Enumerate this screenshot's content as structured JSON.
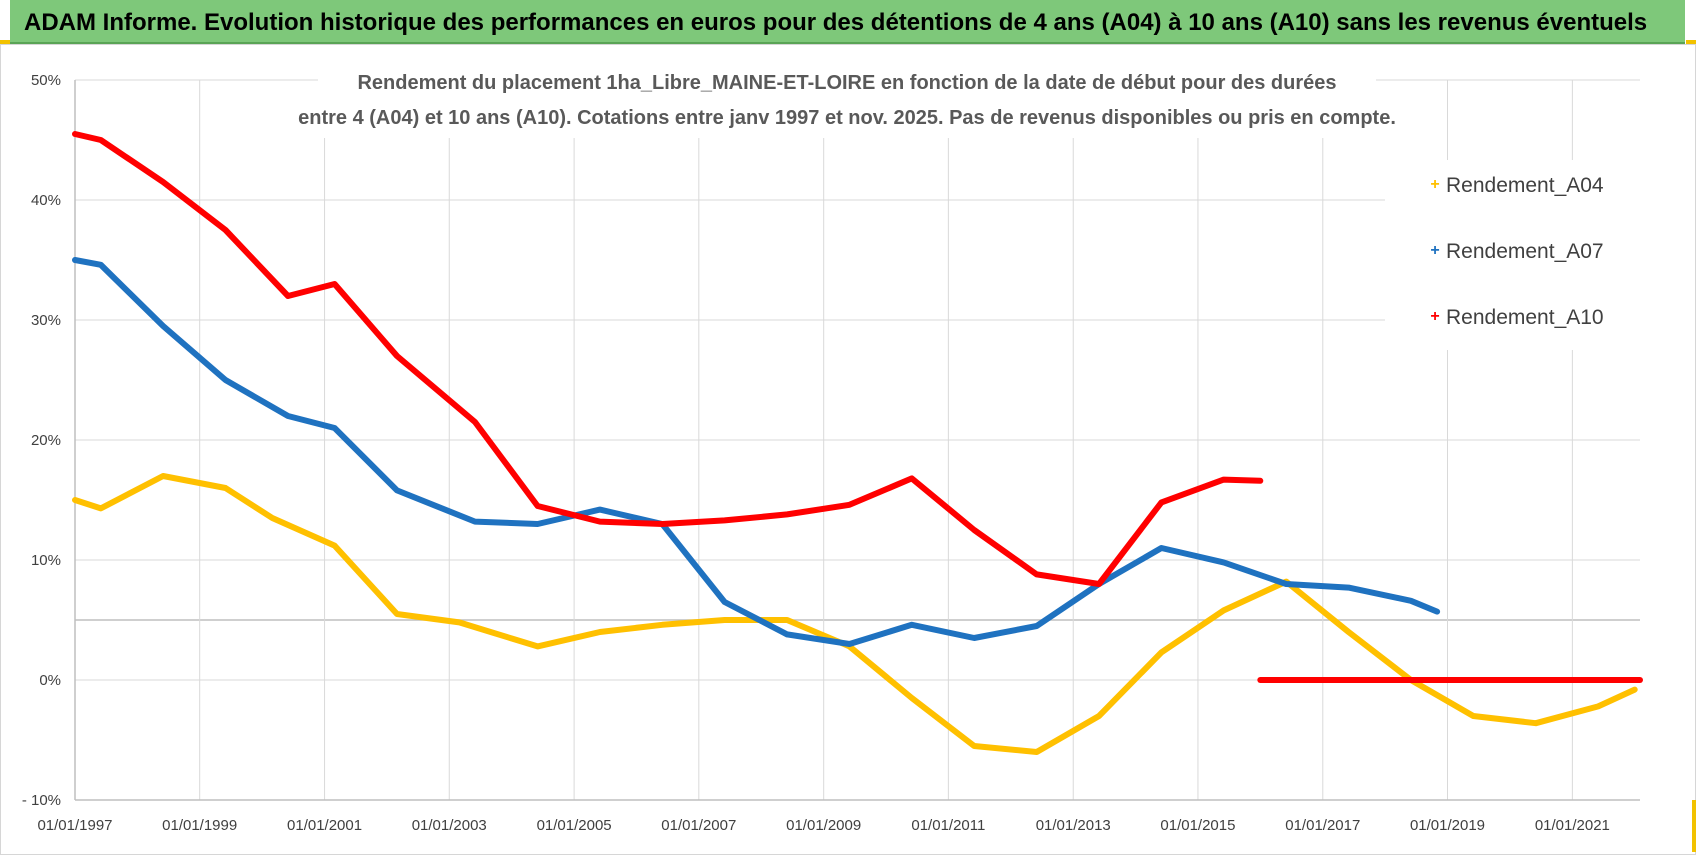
{
  "banner": {
    "title": "ADAM Informe. Evolution historique des performances en euros pour des détentions de 4 ans (A04) à 10 ans (A10) sans les revenus éventuels"
  },
  "colors": {
    "banner_bg": "#7ec87a",
    "A04": "#ffc000",
    "A07": "#1f72c0",
    "A10": "#ff0000",
    "grid": "#d9d9d9",
    "axis": "#bfbfbf",
    "text": "#404040"
  },
  "chart_data": {
    "type": "line",
    "title_line1": "Rendement du placement 1ha_Libre_MAINE-ET-LOIRE en fonction de la date de début pour des durées",
    "title_line2": "entre 4 (A04) et 10 ans (A10). Cotations entre janv 1997 et nov. 2025. Pas de revenus disponibles ou pris en compte.",
    "xlabel": "",
    "ylabel": "",
    "x_range": [
      "1997-01-01",
      "2022-02-01"
    ],
    "ylim": [
      -10,
      50
    ],
    "y_ticks": [
      {
        "value": -10,
        "label": "- 10%"
      },
      {
        "value": 0,
        "label": "0%"
      },
      {
        "value": 10,
        "label": "10%"
      },
      {
        "value": 20,
        "label": "20%"
      },
      {
        "value": 30,
        "label": "30%"
      },
      {
        "value": 40,
        "label": "40%"
      },
      {
        "value": 50,
        "label": "50%"
      }
    ],
    "x_ticks": [
      {
        "date": "1997-01-01",
        "label": "01/01/1997"
      },
      {
        "date": "1999-01-01",
        "label": "01/01/1999"
      },
      {
        "date": "2001-01-01",
        "label": "01/01/2001"
      },
      {
        "date": "2003-01-01",
        "label": "01/01/2003"
      },
      {
        "date": "2005-01-01",
        "label": "01/01/2005"
      },
      {
        "date": "2007-01-01",
        "label": "01/01/2007"
      },
      {
        "date": "2009-01-01",
        "label": "01/01/2009"
      },
      {
        "date": "2011-01-01",
        "label": "01/01/2011"
      },
      {
        "date": "2013-01-01",
        "label": "01/01/2013"
      },
      {
        "date": "2015-01-01",
        "label": "01/01/2015"
      },
      {
        "date": "2017-01-01",
        "label": "01/01/2017"
      },
      {
        "date": "2019-01-01",
        "label": "01/01/2019"
      },
      {
        "date": "2021-01-01",
        "label": "01/01/2021"
      }
    ],
    "extra_hline": 5,
    "grid": true,
    "legend_position": "top-right",
    "series": [
      {
        "name": "Rendement_A04",
        "color": "#ffc000",
        "points": [
          [
            "1997-01-01",
            15
          ],
          [
            "1997-06-01",
            14.3
          ],
          [
            "1998-06-01",
            17
          ],
          [
            "1999-06-01",
            16
          ],
          [
            "2000-03-01",
            13.5
          ],
          [
            "2001-03-01",
            11.2
          ],
          [
            "2002-03-01",
            5.5
          ],
          [
            "2003-03-01",
            4.8
          ],
          [
            "2004-06-01",
            2.8
          ],
          [
            "2005-06-01",
            4
          ],
          [
            "2006-06-01",
            4.6
          ],
          [
            "2007-06-01",
            5
          ],
          [
            "2008-06-01",
            5
          ],
          [
            "2009-06-01",
            2.8
          ],
          [
            "2010-06-01",
            -1.5
          ],
          [
            "2011-06-01",
            -5.5
          ],
          [
            "2012-06-01",
            -6
          ],
          [
            "2013-06-01",
            -3
          ],
          [
            "2014-06-01",
            2.3
          ],
          [
            "2015-06-01",
            5.8
          ],
          [
            "2016-06-01",
            8.2
          ],
          [
            "2017-06-01",
            4
          ],
          [
            "2018-06-01",
            0
          ],
          [
            "2019-06-01",
            -3
          ],
          [
            "2020-06-01",
            -3.6
          ],
          [
            "2021-06-01",
            -2.2
          ],
          [
            "2022-01-01",
            -0.8
          ]
        ]
      },
      {
        "name": "Rendement_A07",
        "color": "#1f72c0",
        "points": [
          [
            "1997-01-01",
            35
          ],
          [
            "1997-06-01",
            34.6
          ],
          [
            "1998-06-01",
            29.5
          ],
          [
            "1999-06-01",
            25
          ],
          [
            "2000-06-01",
            22
          ],
          [
            "2001-03-01",
            21
          ],
          [
            "2002-03-01",
            15.8
          ],
          [
            "2003-06-01",
            13.2
          ],
          [
            "2004-06-01",
            13
          ],
          [
            "2005-06-01",
            14.2
          ],
          [
            "2006-06-01",
            13
          ],
          [
            "2007-06-01",
            6.5
          ],
          [
            "2008-06-01",
            3.8
          ],
          [
            "2009-06-01",
            3
          ],
          [
            "2010-06-01",
            4.6
          ],
          [
            "2011-06-01",
            3.5
          ],
          [
            "2012-06-01",
            4.5
          ],
          [
            "2013-06-01",
            8
          ],
          [
            "2014-06-01",
            11
          ],
          [
            "2015-06-01",
            9.8
          ],
          [
            "2016-06-01",
            8
          ],
          [
            "2017-06-01",
            7.7
          ],
          [
            "2018-06-01",
            6.6
          ],
          [
            "2018-11-01",
            5.7
          ]
        ]
      },
      {
        "name": "Rendement_A10",
        "color": "#ff0000",
        "points": [
          [
            "1997-01-01",
            45.5
          ],
          [
            "1997-06-01",
            45
          ],
          [
            "1998-06-01",
            41.5
          ],
          [
            "1999-06-01",
            37.5
          ],
          [
            "2000-06-01",
            32
          ],
          [
            "2001-03-01",
            33
          ],
          [
            "2002-03-01",
            27
          ],
          [
            "2003-06-01",
            21.5
          ],
          [
            "2004-06-01",
            14.5
          ],
          [
            "2005-06-01",
            13.2
          ],
          [
            "2006-06-01",
            13
          ],
          [
            "2007-06-01",
            13.3
          ],
          [
            "2008-06-01",
            13.8
          ],
          [
            "2009-06-01",
            14.6
          ],
          [
            "2010-06-01",
            16.8
          ],
          [
            "2011-06-01",
            12.5
          ],
          [
            "2012-06-01",
            8.8
          ],
          [
            "2013-06-01",
            8
          ],
          [
            "2014-06-01",
            14.8
          ],
          [
            "2015-06-01",
            16.7
          ],
          [
            "2016-01-01",
            16.6
          ]
        ]
      },
      {
        "name": "",
        "color": "#ff0000",
        "points": [
          [
            "2016-01-01",
            0
          ],
          [
            "2022-02-01",
            0
          ]
        ]
      }
    ]
  }
}
